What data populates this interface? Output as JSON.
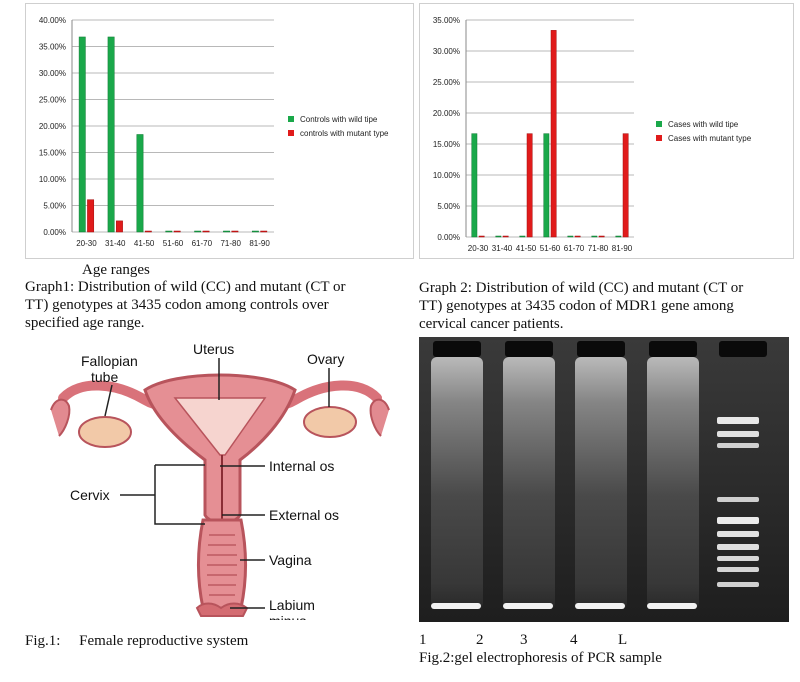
{
  "charts": {
    "chart_data": [
      {
        "type": "bar",
        "categories": [
          "20-30",
          "31-40",
          "41-50",
          "51-60",
          "61-70",
          "71-80",
          "81-90"
        ],
        "series": [
          {
            "name": "Controls with wild tipe",
            "values": [
              36.8,
              36.8,
              18.4,
              0,
              0,
              0,
              0
            ],
            "color": "#1aa84a"
          },
          {
            "name": "controls with mutant type",
            "values": [
              6.1,
              2.1,
              0,
              0,
              0,
              0,
              0
            ],
            "color": "#e01b1b"
          }
        ],
        "ylim": [
          0,
          40
        ],
        "yticks": [
          "0.00%",
          "5.00%",
          "10.00%",
          "15.00%",
          "20.00%",
          "25.00%",
          "30.00%",
          "35.00%",
          "40.00%"
        ],
        "grid": true,
        "legend": "right"
      },
      {
        "type": "bar",
        "categories": [
          "20-30",
          "31-40",
          "41-50",
          "51-60",
          "61-70",
          "71-80",
          "81-90"
        ],
        "series": [
          {
            "name": "Cases with wild tipe",
            "values": [
              16.67,
              0,
              0,
              16.67,
              0,
              0,
              0
            ],
            "color": "#1aa84a"
          },
          {
            "name": "Cases with mutant type",
            "values": [
              0,
              0,
              16.67,
              33.33,
              0,
              0,
              16.67
            ],
            "color": "#e01b1b"
          }
        ],
        "ylim": [
          0,
          35
        ],
        "yticks": [
          "0.00%",
          "5.00%",
          "10.00%",
          "15.00%",
          "20.00%",
          "25.00%",
          "30.00%",
          "35.00%"
        ],
        "grid": true,
        "legend": "right"
      }
    ]
  },
  "captions": {
    "age_ranges": "Age ranges",
    "graph1_line1": "Graph1: Distribution of wild (CC) and mutant (CT or",
    "graph1_line2": "TT) genotypes at 3435 codon among  controls over",
    "graph1_line3": "specified age range.",
    "graph2_line1": "Graph 2: Distribution of wild (CC) and mutant (CT or",
    "graph2_line2": "TT) genotypes at 3435 codon of MDR1 gene among",
    "graph2_line3": "cervical  cancer patients.",
    "fig1": "Fig.1:     Female reproductive system",
    "fig2_lanes": [
      "1",
      "2",
      "3",
      "4",
      "L"
    ],
    "fig2": "Fig.2:gel electrophoresis of PCR sample"
  },
  "anatomy_labels": {
    "fallopian": "Fallopian",
    "tube": "tube",
    "uterus": "Uterus",
    "ovary": "Ovary",
    "cervix": "Cervix",
    "internal_os": "Internal os",
    "external_os": "External os",
    "vagina": "Vagina",
    "labium": "Labium",
    "minus": "minus"
  }
}
